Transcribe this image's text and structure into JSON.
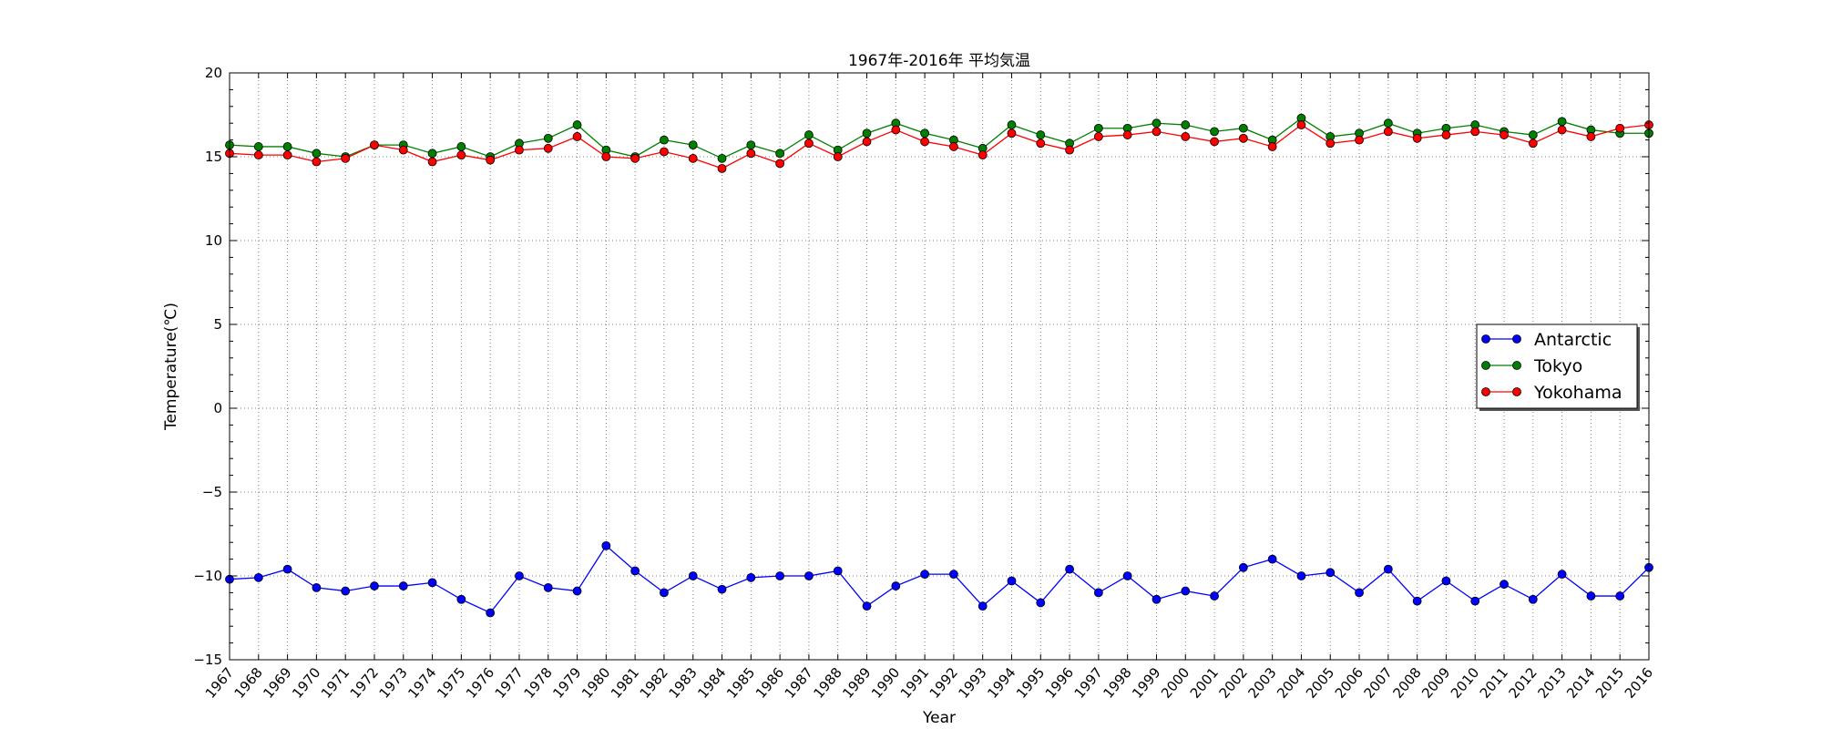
{
  "chart_data": {
    "type": "line",
    "title": "1967年-2016年 平均気温",
    "xlabel": "Year",
    "ylabel": "Temperature(℃)",
    "ylim": [
      -15,
      20
    ],
    "yticks": [
      "−15",
      "−10",
      "−5",
      "0",
      "5",
      "10",
      "15",
      "20"
    ],
    "grid": true,
    "legend_position": "right",
    "x": [
      "1967",
      "1968",
      "1969",
      "1970",
      "1971",
      "1972",
      "1973",
      "1974",
      "1975",
      "1976",
      "1977",
      "1978",
      "1979",
      "1980",
      "1981",
      "1982",
      "1983",
      "1984",
      "1985",
      "1986",
      "1987",
      "1988",
      "1989",
      "1990",
      "1991",
      "1992",
      "1993",
      "1994",
      "1995",
      "1996",
      "1997",
      "1998",
      "1999",
      "2000",
      "2001",
      "2002",
      "2003",
      "2004",
      "2005",
      "2006",
      "2007",
      "2008",
      "2009",
      "2010",
      "2011",
      "2012",
      "2013",
      "2014",
      "2015",
      "2016"
    ],
    "series": [
      {
        "name": "Antarctic",
        "color": "#0000ff",
        "values": [
          -10.2,
          -10.1,
          -9.6,
          -10.7,
          -10.9,
          -10.6,
          -10.6,
          -10.4,
          -11.4,
          -12.2,
          -10.0,
          -10.7,
          -10.9,
          -8.2,
          -9.7,
          -11.0,
          -10.0,
          -10.8,
          -10.1,
          -10.0,
          -10.0,
          -9.7,
          -11.8,
          -10.6,
          -9.9,
          -9.9,
          -11.8,
          -10.3,
          -11.6,
          -9.6,
          -11.0,
          -10.0,
          -11.4,
          -10.9,
          -11.2,
          -9.5,
          -9.0,
          -10.0,
          -9.8,
          -11.0,
          -9.6,
          -11.5,
          -10.3,
          -11.5,
          -10.5,
          -11.4,
          -9.9,
          -11.2,
          -11.2,
          -9.5
        ]
      },
      {
        "name": "Tokyo",
        "color": "#008000",
        "values": [
          15.7,
          15.6,
          15.6,
          15.2,
          15.0,
          15.7,
          15.7,
          15.2,
          15.6,
          15.0,
          15.8,
          16.1,
          16.9,
          15.4,
          15.0,
          16.0,
          15.7,
          14.9,
          15.7,
          15.2,
          16.3,
          15.4,
          16.4,
          17.0,
          16.4,
          16.0,
          15.5,
          16.9,
          16.3,
          15.8,
          16.7,
          16.7,
          17.0,
          16.9,
          16.5,
          16.7,
          16.0,
          17.3,
          16.2,
          16.4,
          17.0,
          16.4,
          16.7,
          16.9,
          16.5,
          16.3,
          17.1,
          16.6,
          16.4,
          16.4
        ]
      },
      {
        "name": "Yokohama",
        "color": "#ff0000",
        "values": [
          15.2,
          15.1,
          15.1,
          14.7,
          14.9,
          15.7,
          15.4,
          14.7,
          15.1,
          14.8,
          15.4,
          15.5,
          16.2,
          15.0,
          14.9,
          15.3,
          14.9,
          14.3,
          15.2,
          14.6,
          15.8,
          15.0,
          15.9,
          16.6,
          15.9,
          15.6,
          15.1,
          16.4,
          15.8,
          15.4,
          16.2,
          16.3,
          16.5,
          16.2,
          15.9,
          16.1,
          15.6,
          16.9,
          15.8,
          16.0,
          16.5,
          16.1,
          16.3,
          16.5,
          16.3,
          15.8,
          16.6,
          16.2,
          16.7,
          16.9
        ]
      }
    ]
  }
}
